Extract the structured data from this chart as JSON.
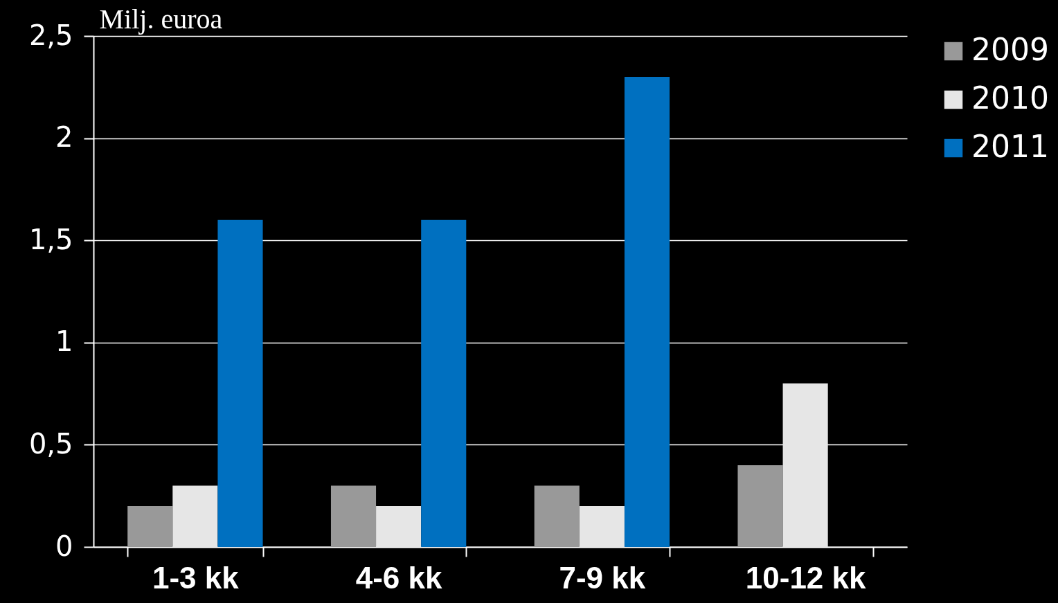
{
  "chart_data": {
    "type": "bar",
    "ylabel": "Milj. euroa",
    "categories": [
      "1-3 kk",
      "4-6 kk",
      "7-9 kk",
      "10-12 kk"
    ],
    "series": [
      {
        "name": "2009",
        "color": "#999999",
        "values": [
          0.2,
          0.3,
          0.3,
          0.4
        ]
      },
      {
        "name": "2010",
        "color": "#e6e6e6",
        "values": [
          0.3,
          0.2,
          0.2,
          0.8
        ]
      },
      {
        "name": "2011",
        "color": "#0070c0",
        "values": [
          1.6,
          1.6,
          2.3,
          null
        ]
      }
    ],
    "ylim": [
      0,
      2.5
    ],
    "yticks": [
      0,
      {
        "value": 0.5,
        "label": "0,5"
      },
      1,
      {
        "value": 1.5,
        "label": "1,5"
      },
      2,
      {
        "value": 2.5,
        "label": "2,5"
      }
    ],
    "grid": "y",
    "legend": "right"
  }
}
